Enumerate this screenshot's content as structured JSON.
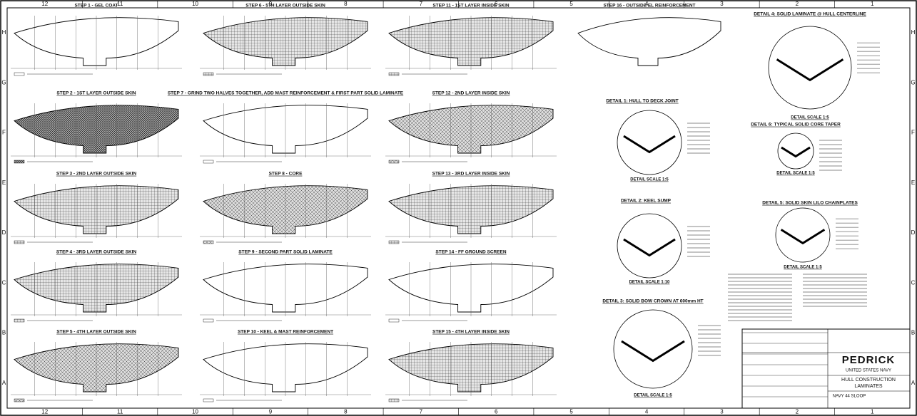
{
  "sheet": {
    "columns": [
      "12",
      "11",
      "10",
      "9",
      "8",
      "7",
      "6",
      "5",
      "4",
      "3",
      "2",
      "1"
    ],
    "rows": [
      "H",
      "G",
      "F",
      "E",
      "D",
      "C",
      "B",
      "A"
    ],
    "steps": [
      "STEP 1 - GEL COAT",
      "STEP 2 - 1ST LAYER OUTSIDE SKIN",
      "STEP 3 - 2ND LAYER OUTSIDE SKIN",
      "STEP 4 - 3RD LAYER OUTSIDE SKIN",
      "STEP 5 - 4TH LAYER OUTSIDE SKIN",
      "STEP 6 - 5TH LAYER OUTSIDE SKIN",
      "STEP 7 - GRIND TWO HALVES TOGETHER, ADD MAST REINFORCEMENT & FIRST PART SOLID LAMINATE",
      "STEP 8 - CORE",
      "STEP 9 - SECOND PART SOLID LAMINATE",
      "STEP 10 - KEEL & MAST REINFORCEMENT",
      "STEP 11 - 1ST LAYER INSIDE SKIN",
      "STEP 12 - 2ND LAYER INSIDE SKIN",
      "STEP 13 - 3RD LAYER INSIDE SKIN",
      "STEP 14 - FF GROUND SCREEN",
      "STEP 15 - 4TH LAYER INSIDE SKIN",
      "STEP 16 - OUTSIDE EL REINFORCEMENT"
    ],
    "details": [
      {
        "title": "DETAIL 4: SOLID LAMINATE @ HULL CENTERLINE",
        "scale": "DETAIL SCALE 1:5"
      },
      {
        "title": "DETAIL 1: HULL TO DECK JOINT",
        "scale": "DETAIL SCALE 1:5"
      },
      {
        "title": "DETAIL 6: TYPICAL SOLID CORE TAPER",
        "scale": "DETAIL SCALE 1:5"
      },
      {
        "title": "DETAIL 2: KEEL SUMP",
        "scale": "DETAIL SCALE 1:10"
      },
      {
        "title": "DETAIL 5: SOLID SKIN LILO CHAINPLATES",
        "scale": "DETAIL SCALE 1:5"
      },
      {
        "title": "DETAIL 3: SOLID BOW CROWN AT 600mm HT",
        "scale": "DETAIL SCALE 1:5"
      }
    ],
    "title_block": {
      "company": "PEDRICK",
      "client": "UNITED STATES NAVY",
      "title": "HULL CONSTRUCTION",
      "subtitle": "LAMINATES",
      "project": "NAVY 44 SLOOP"
    }
  }
}
